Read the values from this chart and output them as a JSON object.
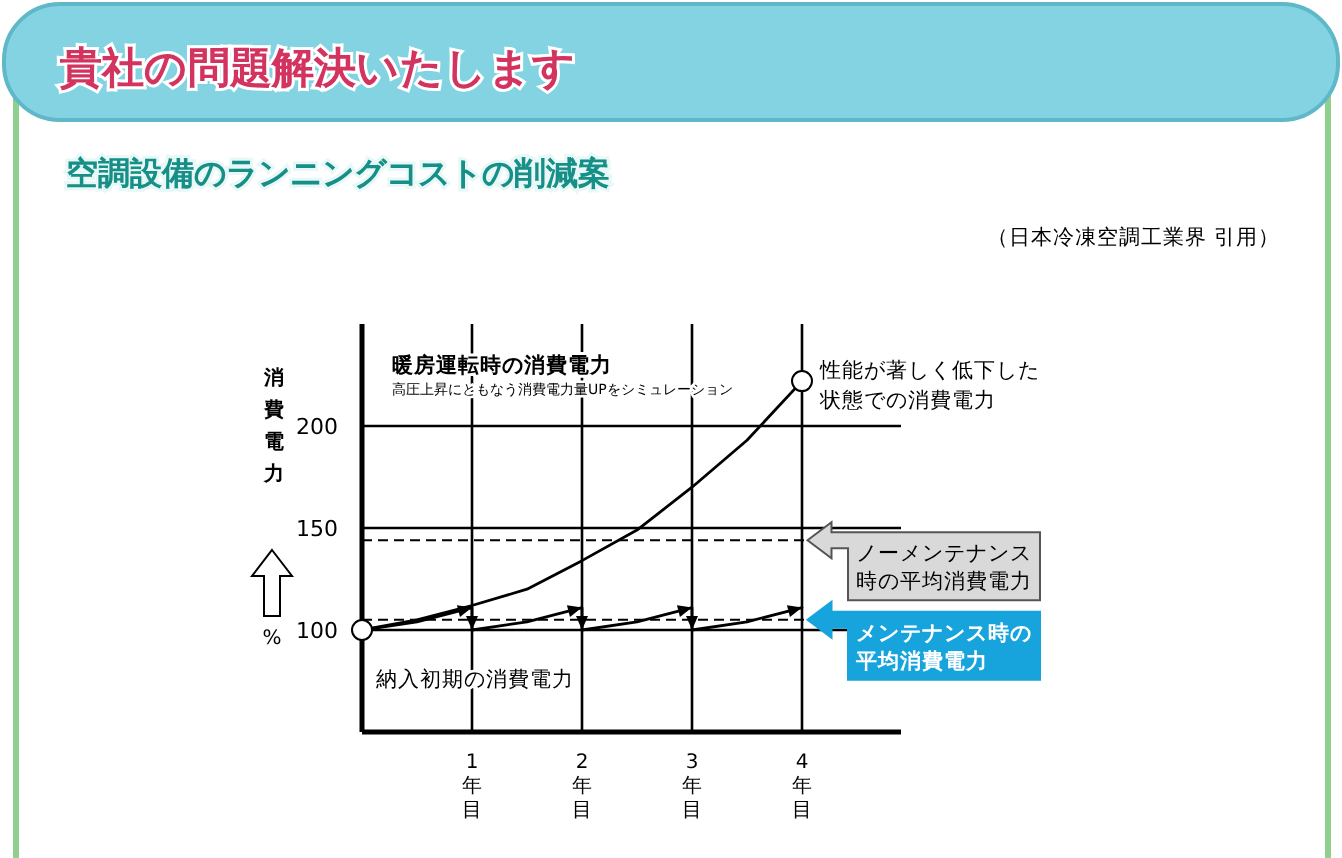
{
  "chart_data": {
    "type": "line",
    "title": "貴社の問題解決いたします",
    "subtitle": "空調設備のランニングコストの削減案",
    "ylabel": "消費電力",
    "x": [
      0,
      0.5,
      1,
      1.5,
      2,
      2.5,
      3,
      3.5,
      4
    ],
    "series": [
      {
        "color": "#000000",
        "values": [
          100,
          105,
          112,
          120,
          134,
          149,
          170,
          193,
          222
        ]
      },
      {
        "color": "#000000",
        "x": [
          0,
          0.5,
          1,
          1,
          1.5,
          2,
          2,
          2.5,
          3,
          3,
          3.5,
          4
        ],
        "values": [
          100,
          104,
          111,
          100,
          104,
          111,
          100,
          104,
          111,
          100,
          104,
          111
        ]
      }
    ],
    "xlim": [
      0,
      4.9
    ],
    "ylim": [
      50,
      250
    ],
    "xticks": [
      {
        "value": 1,
        "label": "1年目"
      },
      {
        "value": 2,
        "label": "2年目"
      },
      {
        "value": 3,
        "label": "3年目"
      },
      {
        "value": 4,
        "label": "4年目"
      }
    ],
    "yticks": [
      100,
      150,
      200
    ],
    "grid": true,
    "ref_lines": [
      {
        "axis": "y",
        "value": 144,
        "label": "ノーメンテナンス時の平均消費電力",
        "line_style": "dashed"
      },
      {
        "axis": "y",
        "value": 105,
        "label": "メンテナンス時の平均消費電力",
        "line_style": "dashed"
      }
    ],
    "annotations": [
      "（日本冷凍空調工業界 引用）",
      "暖房運転時の消費電力",
      "高圧上昇にともなう消費電力量UPをシミュレーション",
      "%",
      {
        "text": "性能が著しく低下した状態での消費電力",
        "x": 4,
        "y": 222
      },
      {
        "text": "納入初期の消費電力",
        "x": 0,
        "y": 100
      }
    ]
  }
}
